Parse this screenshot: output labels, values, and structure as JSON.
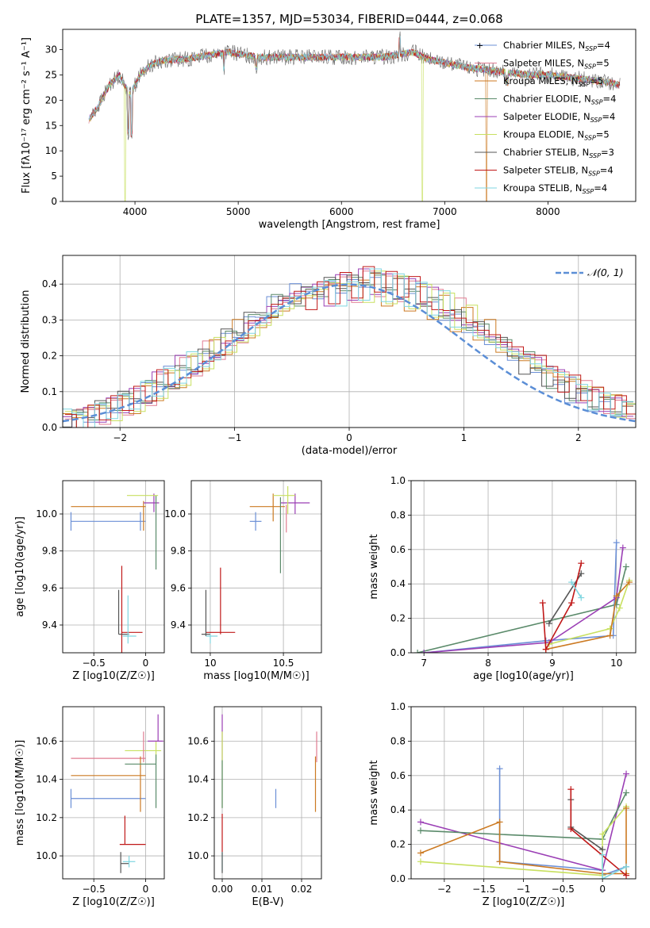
{
  "series_legend": [
    {
      "label": "Chabrier MILES, N",
      "sub": "SSP",
      "n": "=4",
      "color": "#6b8fd6"
    },
    {
      "label": "Salpeter MILES, N",
      "sub": "SSP",
      "n": "=5",
      "color": "#e07b91"
    },
    {
      "label": "Kroupa MILES, N",
      "sub": "SSP",
      "n": "=5",
      "color": "#cc7a22"
    },
    {
      "label": "Chabrier ELODIE, N",
      "sub": "SSP",
      "n": "=4",
      "color": "#5a8a6a"
    },
    {
      "label": "Salpeter ELODIE, N",
      "sub": "SSP",
      "n": "=4",
      "color": "#9b3fb5"
    },
    {
      "label": "Kroupa ELODIE, N",
      "sub": "SSP",
      "n": "=5",
      "color": "#c8e060"
    },
    {
      "label": "Chabrier STELIB, N",
      "sub": "SSP",
      "n": "=3",
      "color": "#555555"
    },
    {
      "label": "Salpeter STELIB, N",
      "sub": "SSP",
      "n": "=4",
      "color": "#c01818"
    },
    {
      "label": "Kroupa STELIB, N",
      "sub": "SSP",
      "n": "=4",
      "color": "#7fd6e0"
    }
  ],
  "chart_data": [
    {
      "type": "line",
      "title": "PLATE=1357, MJD=53034, FIBERID=0444, z=0.068",
      "xlabel": "wavelength [Angstrom, rest frame]",
      "ylabel": "Flux [fλ10⁻¹⁷ erg cm⁻² s⁻¹ A⁻¹]",
      "xlim": [
        3300,
        8850
      ],
      "ylim": [
        0,
        34
      ],
      "xticks": [
        4000,
        5000,
        6000,
        7000,
        8000
      ],
      "yticks": [
        0,
        5,
        10,
        15,
        20,
        25,
        30
      ],
      "spectrum": {
        "x": [
          3550,
          3650,
          3750,
          3850,
          3950,
          4050,
          4150,
          4300,
          4450,
          4600,
          4750,
          4900,
          5050,
          5200,
          5400,
          5600,
          5800,
          6000,
          6200,
          6400,
          6550,
          6700,
          6850,
          7000,
          7200,
          7400,
          7600,
          7800,
          8000,
          8200,
          8400,
          8600,
          8700
        ],
        "y": [
          16,
          19,
          23,
          25,
          21,
          25,
          27,
          28,
          28,
          28.5,
          29,
          29.5,
          29,
          28.5,
          28.5,
          28.5,
          28.5,
          28.5,
          28.5,
          28.5,
          29,
          29.5,
          28,
          27.5,
          26.5,
          26,
          25.5,
          25,
          25,
          24.5,
          24,
          23.5,
          23
        ]
      }
    },
    {
      "type": "line",
      "xlabel": "(data-model)/error",
      "ylabel": "Normed distribution",
      "xlim": [
        -2.5,
        2.5
      ],
      "ylim": [
        0,
        0.48
      ],
      "xticks": [
        -2,
        -1,
        0,
        1,
        2
      ],
      "yticks": [
        0.0,
        0.1,
        0.2,
        0.3,
        0.4
      ],
      "legend": "N(0,1)",
      "legend_position": "top-right",
      "bin_edges": [
        -2.5,
        -2.4,
        -2.3,
        -2.2,
        -2.1,
        -2.0,
        -1.9,
        -1.8,
        -1.7,
        -1.6,
        -1.5,
        -1.4,
        -1.3,
        -1.2,
        -1.1,
        -1.0,
        -0.9,
        -0.8,
        -0.7,
        -0.6,
        -0.5,
        -0.4,
        -0.3,
        -0.2,
        -0.1,
        0.0,
        0.1,
        0.2,
        0.3,
        0.4,
        0.5,
        0.6,
        0.7,
        0.8,
        0.9,
        1.0,
        1.1,
        1.2,
        1.3,
        1.4,
        1.5,
        1.6,
        1.7,
        1.8,
        1.9,
        2.0,
        2.1,
        2.2,
        2.3,
        2.4,
        2.5
      ],
      "histograms": [
        [
          0.02,
          0.03,
          0.04,
          0.05,
          0.06,
          0.07,
          0.08,
          0.1,
          0.12,
          0.14,
          0.16,
          0.18,
          0.2,
          0.22,
          0.25,
          0.27,
          0.29,
          0.32,
          0.34,
          0.36,
          0.37,
          0.38,
          0.39,
          0.4,
          0.4,
          0.4,
          0.41,
          0.4,
          0.39,
          0.39,
          0.38,
          0.37,
          0.35,
          0.33,
          0.31,
          0.29,
          0.27,
          0.25,
          0.22,
          0.2,
          0.18,
          0.16,
          0.14,
          0.12,
          0.1,
          0.09,
          0.07,
          0.06,
          0.05,
          0.04
        ],
        [
          0.03,
          0.02,
          0.05,
          0.04,
          0.07,
          0.06,
          0.09,
          0.08,
          0.13,
          0.12,
          0.17,
          0.15,
          0.21,
          0.19,
          0.26,
          0.23,
          0.31,
          0.28,
          0.35,
          0.33,
          0.38,
          0.36,
          0.4,
          0.37,
          0.42,
          0.38,
          0.43,
          0.39,
          0.41,
          0.37,
          0.39,
          0.35,
          0.36,
          0.32,
          0.33,
          0.28,
          0.29,
          0.24,
          0.25,
          0.2,
          0.21,
          0.17,
          0.17,
          0.13,
          0.14,
          0.1,
          0.1,
          0.07,
          0.07,
          0.05
        ],
        [
          0.02,
          0.04,
          0.03,
          0.06,
          0.05,
          0.08,
          0.07,
          0.11,
          0.1,
          0.14,
          0.13,
          0.18,
          0.17,
          0.22,
          0.21,
          0.27,
          0.25,
          0.31,
          0.3,
          0.35,
          0.34,
          0.38,
          0.36,
          0.41,
          0.37,
          0.4,
          0.38,
          0.43,
          0.37,
          0.41,
          0.35,
          0.38,
          0.32,
          0.35,
          0.28,
          0.31,
          0.25,
          0.27,
          0.21,
          0.23,
          0.18,
          0.19,
          0.14,
          0.16,
          0.11,
          0.12,
          0.08,
          0.09,
          0.06,
          0.06
        ]
      ],
      "normal_curve": {
        "mu": 0,
        "sigma": 1
      }
    },
    {
      "type": "scatter",
      "xlabel": "Z [log10(Z/Z☉)]",
      "ylabel": "age  [log10(age/yr)]",
      "xlim": [
        -0.8,
        0.18
      ],
      "ylim": [
        9.25,
        10.18
      ],
      "xticks": [
        -0.5,
        0.0
      ],
      "yticks": [
        9.4,
        9.6,
        9.8,
        10.0
      ]
    },
    {
      "type": "scatter",
      "xlabel": "mass [log10(M/M☉)]",
      "xlim": [
        9.87,
        10.76
      ],
      "ylim": [
        9.25,
        10.18
      ],
      "xticks": [
        10.0,
        10.5
      ],
      "yticks": [
        9.4,
        9.6,
        9.8,
        10.0
      ]
    },
    {
      "type": "line",
      "xlabel": "age  [log10(age/yr)]",
      "ylabel": "mass weight",
      "xlim": [
        6.8,
        10.3
      ],
      "ylim": [
        0.0,
        1.0
      ],
      "xticks": [
        7,
        8,
        9,
        10
      ],
      "yticks": [
        0.0,
        0.2,
        0.4,
        0.6,
        0.8,
        1.0
      ]
    },
    {
      "type": "scatter",
      "xlabel": "Z [log10(Z/Z☉)]",
      "ylabel": "mass [log10(M/M☉)]",
      "xlim": [
        -0.8,
        0.18
      ],
      "ylim": [
        9.88,
        10.78
      ],
      "xticks": [
        -0.5,
        0.0
      ],
      "yticks": [
        10.0,
        10.2,
        10.4,
        10.6
      ]
    },
    {
      "type": "scatter",
      "xlabel": "E(B-V)",
      "xlim": [
        -0.002,
        0.025
      ],
      "ylim": [
        9.88,
        10.78
      ],
      "xticks": [
        0.0,
        0.01,
        0.02
      ],
      "xticklabels": [
        "0.00",
        "0.01",
        "0.02"
      ],
      "yticks": [
        10.0,
        10.2,
        10.4,
        10.6
      ]
    },
    {
      "type": "line",
      "xlabel": "Z [log10(Z/Z☉)]",
      "ylabel": "mass weight",
      "xlim": [
        -2.42,
        0.42
      ],
      "ylim": [
        0.0,
        1.0
      ],
      "xticks": [
        -2.0,
        -1.5,
        -1.0,
        -0.5,
        0.0
      ],
      "yticks": [
        0.0,
        0.2,
        0.4,
        0.6,
        0.8,
        1.0
      ]
    }
  ]
}
